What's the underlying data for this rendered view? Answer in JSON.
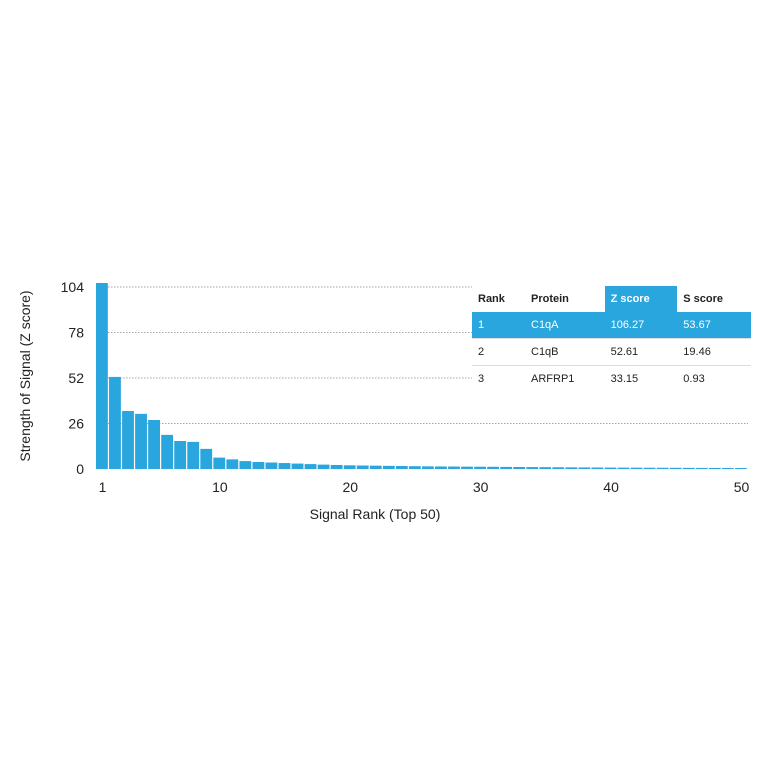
{
  "chart_data": {
    "type": "bar",
    "xlabel": "Signal Rank (Top 50)",
    "ylabel": "Strength of Signal (Z score)",
    "ylim": [
      0,
      106.27
    ],
    "yticks": [
      0,
      26,
      52,
      78,
      104
    ],
    "xticks": [
      1,
      10,
      20,
      30,
      40,
      50
    ],
    "grid": true,
    "x": [
      1,
      2,
      3,
      4,
      5,
      6,
      7,
      8,
      9,
      10,
      11,
      12,
      13,
      14,
      15,
      16,
      17,
      18,
      19,
      20,
      21,
      22,
      23,
      24,
      25,
      26,
      27,
      28,
      29,
      30,
      31,
      32,
      33,
      34,
      35,
      36,
      37,
      38,
      39,
      40,
      41,
      42,
      43,
      44,
      45,
      46,
      47,
      48,
      49,
      50
    ],
    "values": [
      106.27,
      52.61,
      33.15,
      31.5,
      28,
      19.5,
      16,
      15.5,
      11.5,
      6.5,
      5.5,
      4.5,
      4,
      3.7,
      3.4,
      3.1,
      2.8,
      2.5,
      2.3,
      2.1,
      2,
      1.9,
      1.8,
      1.7,
      1.6,
      1.5,
      1.45,
      1.4,
      1.35,
      1.3,
      1.25,
      1.2,
      1.15,
      1.1,
      1.05,
      1,
      0.95,
      0.9,
      0.85,
      0.8,
      0.78,
      0.75,
      0.72,
      0.7,
      0.68,
      0.65,
      0.62,
      0.6,
      0.58,
      0.55
    ]
  },
  "table": {
    "headers": [
      "Rank",
      "Protein",
      "Z score",
      "S score"
    ],
    "highlight_color": "#29a6de",
    "rows": [
      [
        "1",
        "C1qA",
        "106.27",
        "53.67"
      ],
      [
        "2",
        "C1qB",
        "52.61",
        "19.46"
      ],
      [
        "3",
        "ARFRP1",
        "33.15",
        "0.93"
      ]
    ]
  }
}
